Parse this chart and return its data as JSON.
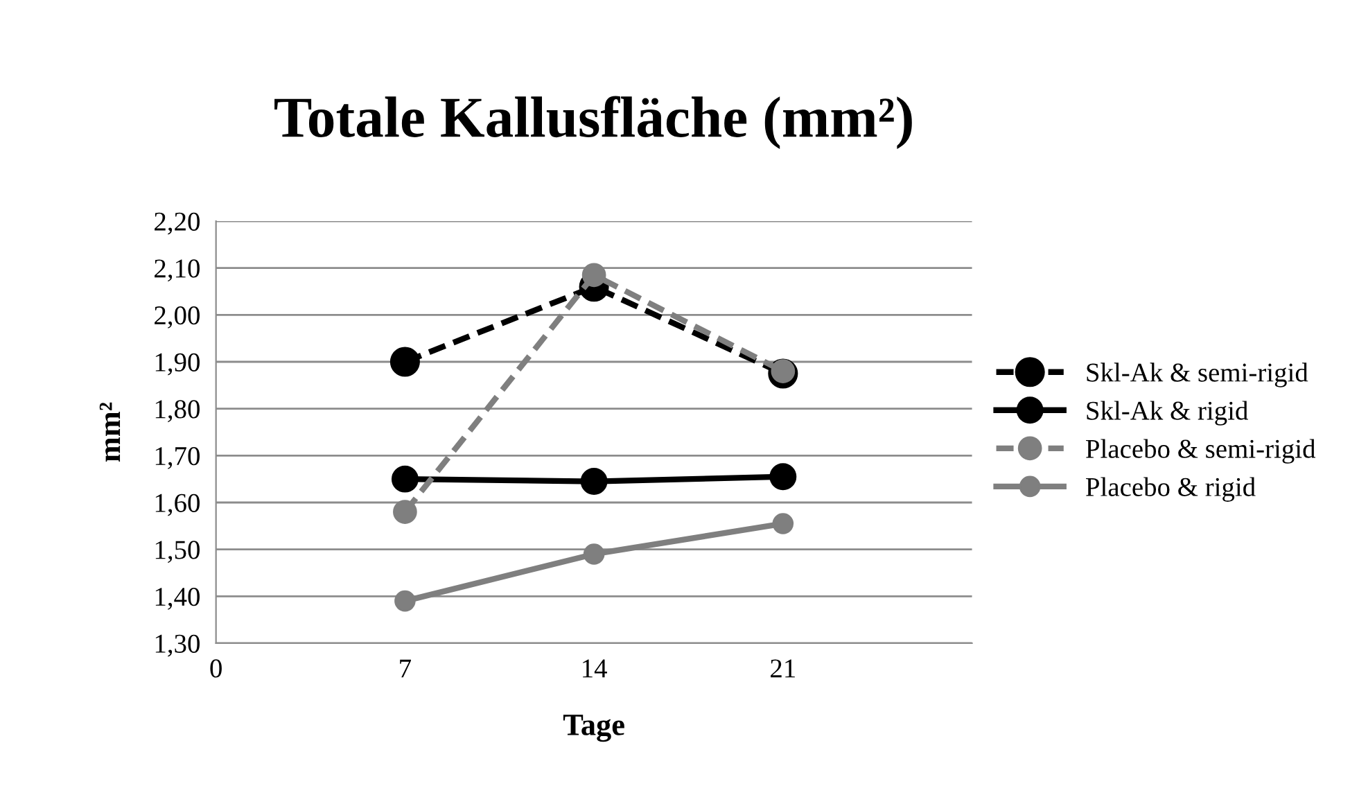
{
  "chart_data": {
    "type": "line",
    "title": "Totale Kallusfläche (mm²)",
    "xlabel": "Tage",
    "ylabel": "mm²",
    "x": [
      7,
      14,
      21
    ],
    "xlim": [
      0,
      28
    ],
    "xticks": [
      0,
      7,
      14,
      21
    ],
    "ylim": [
      1.3,
      2.2
    ],
    "yticks": [
      {
        "value": 1.3,
        "label": "1,30"
      },
      {
        "value": 1.4,
        "label": "1,40"
      },
      {
        "value": 1.5,
        "label": "1,50"
      },
      {
        "value": 1.6,
        "label": "1,60"
      },
      {
        "value": 1.7,
        "label": "1,70"
      },
      {
        "value": 1.8,
        "label": "1,80"
      },
      {
        "value": 1.9,
        "label": "1,90"
      },
      {
        "value": 2.0,
        "label": "2,00"
      },
      {
        "value": 2.1,
        "label": "2,10"
      },
      {
        "value": 2.2,
        "label": "2,20"
      }
    ],
    "grid": "y",
    "legend": "right",
    "marker": "circle",
    "series": [
      {
        "name": "Skl-Ak & semi-rigid",
        "color": "#000000",
        "line_style": "dashed",
        "values": [
          1.9,
          2.06,
          1.875
        ]
      },
      {
        "name": "Skl-Ak & rigid",
        "color": "#000000",
        "line_style": "solid",
        "values": [
          1.65,
          1.645,
          1.655
        ]
      },
      {
        "name": "Placebo & semi-rigid",
        "color": "#7f7f7f",
        "line_style": "dashed",
        "values": [
          1.58,
          2.085,
          1.88
        ]
      },
      {
        "name": "Placebo & rigid",
        "color": "#7f7f7f",
        "line_style": "solid",
        "values": [
          1.39,
          1.49,
          1.555
        ]
      }
    ]
  }
}
